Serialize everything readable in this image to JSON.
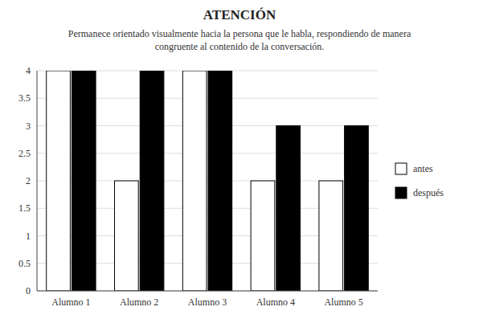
{
  "chart_data": {
    "type": "bar",
    "title": "ATENCIÓN",
    "subtitle": [
      "Permanece orientado visualmente hacia la persona que le habla, respondiendo de manera",
      "congruente al contenido de la conversación."
    ],
    "categories": [
      "Alumno 1",
      "Alumno 2",
      "Alumno 3",
      "Alumno 4",
      "Alumno 5"
    ],
    "series": [
      {
        "name": "antes",
        "color": "#ffffff",
        "values": [
          4,
          2,
          4,
          2,
          2
        ]
      },
      {
        "name": "después",
        "color": "#000000",
        "values": [
          4,
          4,
          4,
          3,
          3
        ]
      }
    ],
    "ylim": [
      0,
      4
    ],
    "yticks": [
      0,
      0.5,
      1,
      1.5,
      2,
      2.5,
      3,
      3.5,
      4
    ],
    "grid": true,
    "legend": "right"
  }
}
